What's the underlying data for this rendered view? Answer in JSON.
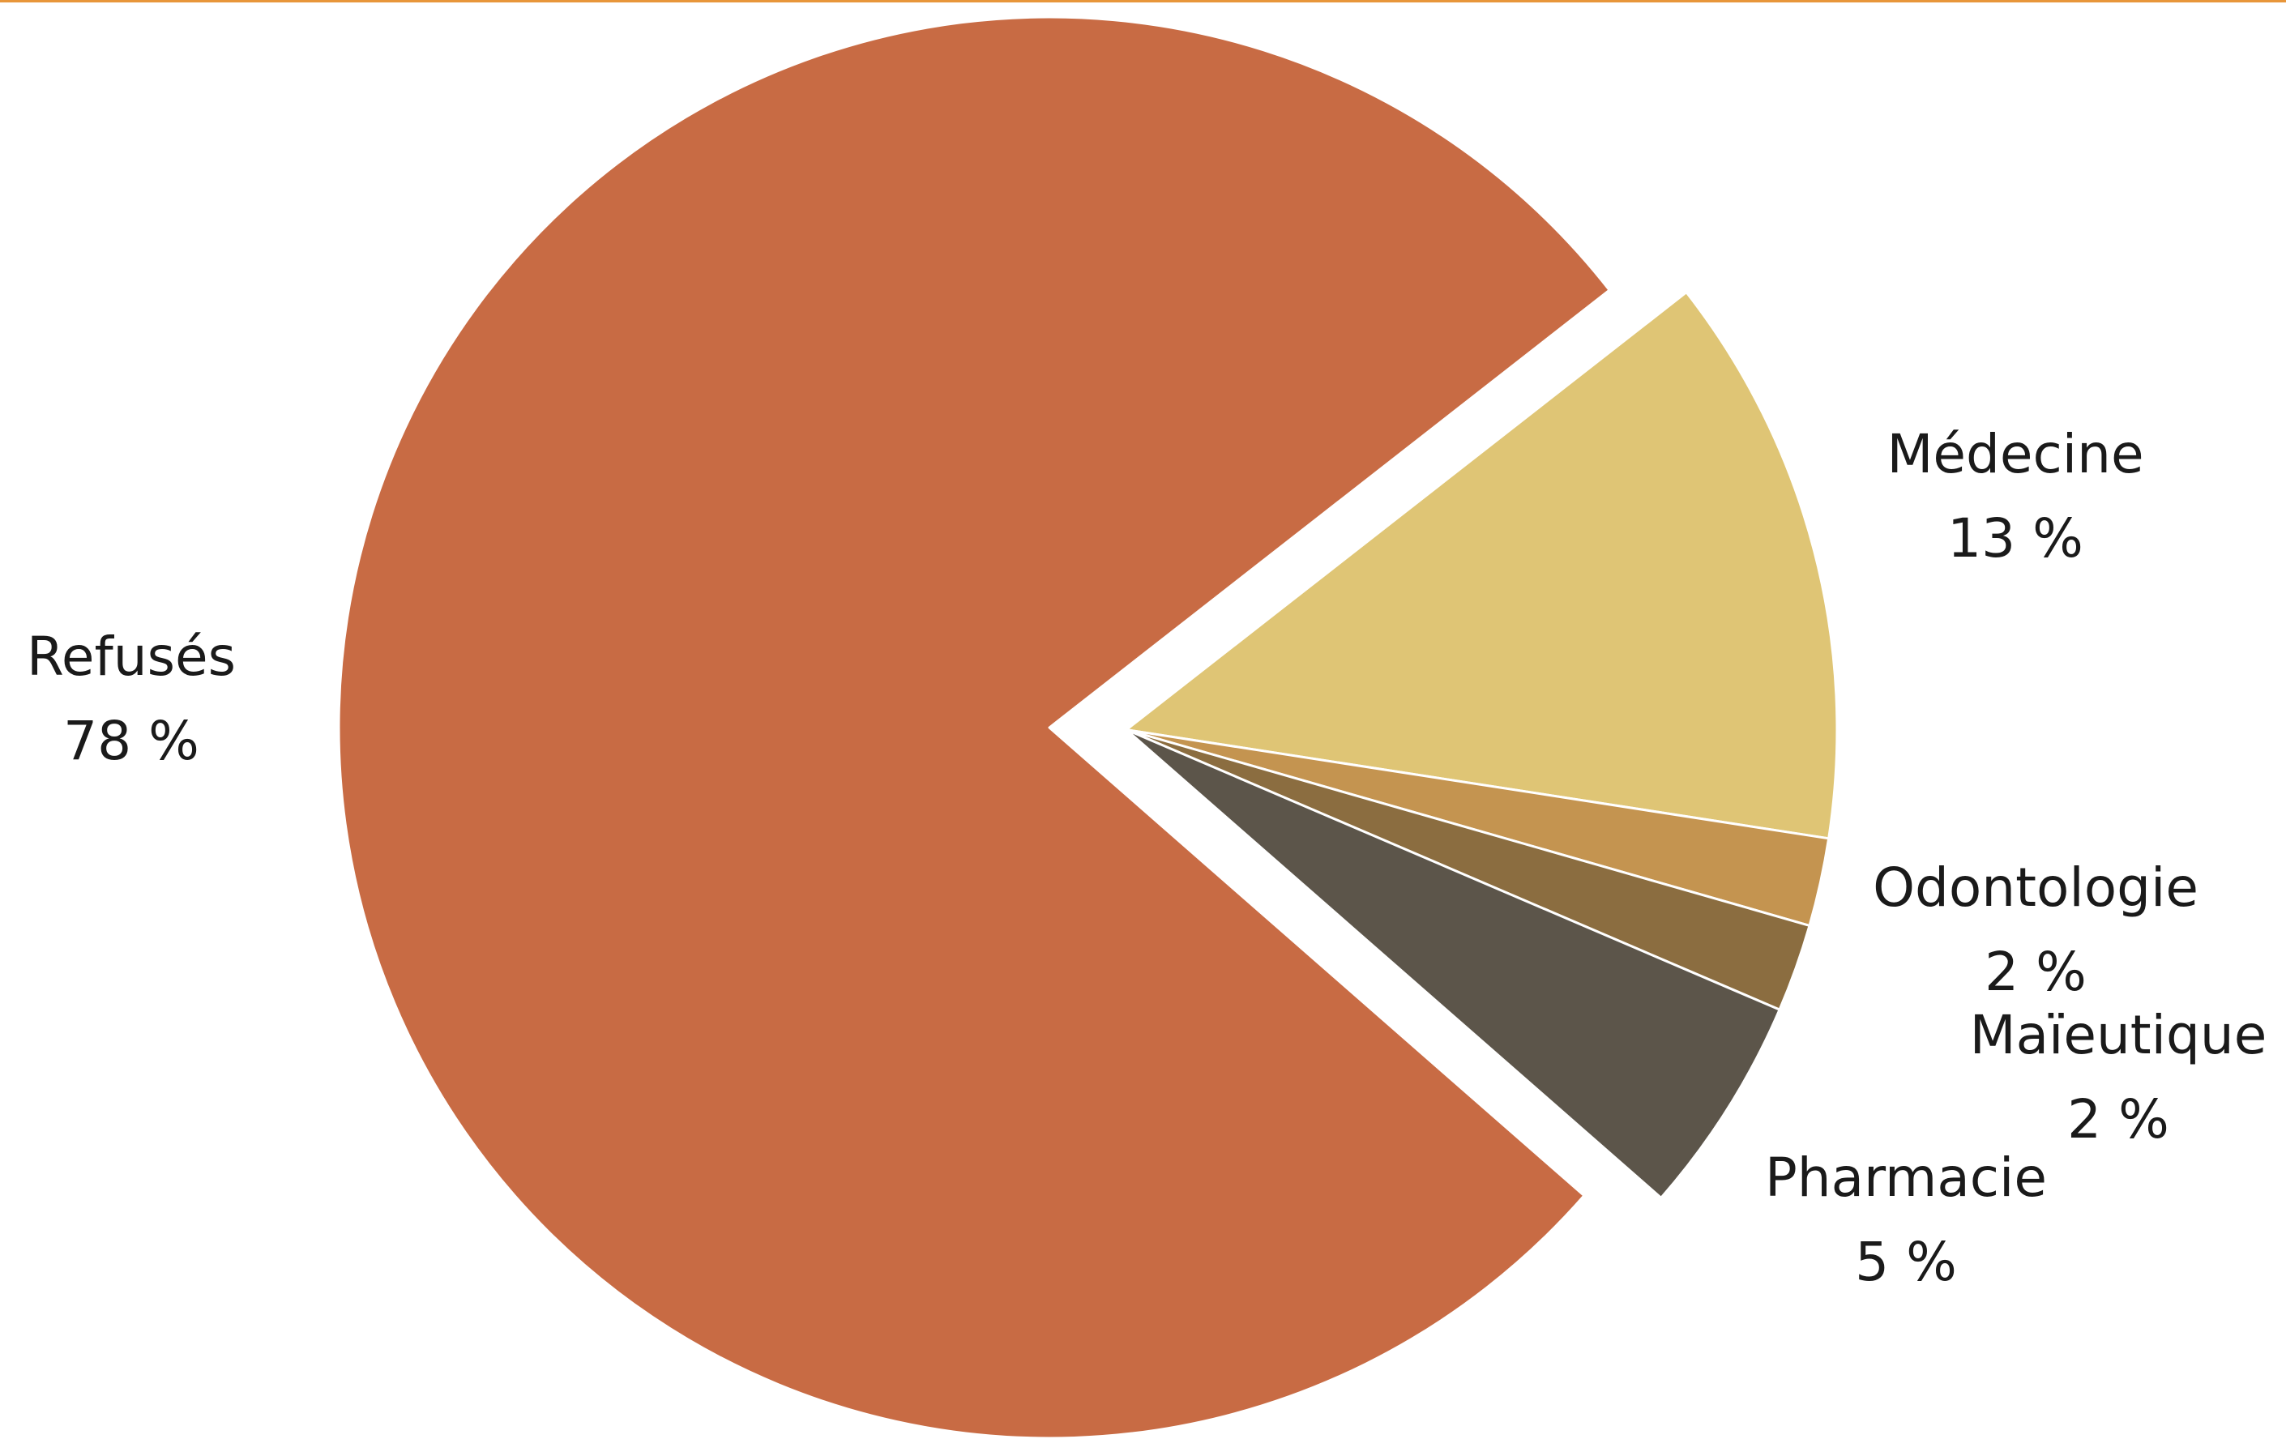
{
  "colors": {
    "top_rule": "#e8963a",
    "label_text": "#1a1a1a",
    "slice_separator": "#ffffff"
  },
  "chart_data": {
    "type": "pie",
    "slices": [
      {
        "label": "Médecine",
        "value": 13,
        "value_label": "13 %",
        "color": "#dfc575",
        "exploded": true
      },
      {
        "label": "Odontologie",
        "value": 2,
        "value_label": "2 %",
        "color": "#c49450",
        "exploded": true
      },
      {
        "label": "Maïeutique",
        "value": 2,
        "value_label": "2 %",
        "color": "#8b6d40",
        "exploded": true
      },
      {
        "label": "Pharmacie",
        "value": 5,
        "value_label": "5 %",
        "color": "#5c554a",
        "exploded": true
      },
      {
        "label": "Refusés",
        "value": 78,
        "value_label": "78 %",
        "color": "#c86b44",
        "exploded": false
      }
    ],
    "start_angle_deg": -38,
    "direction": "clockwise",
    "legend": "none",
    "labels": "outside"
  }
}
